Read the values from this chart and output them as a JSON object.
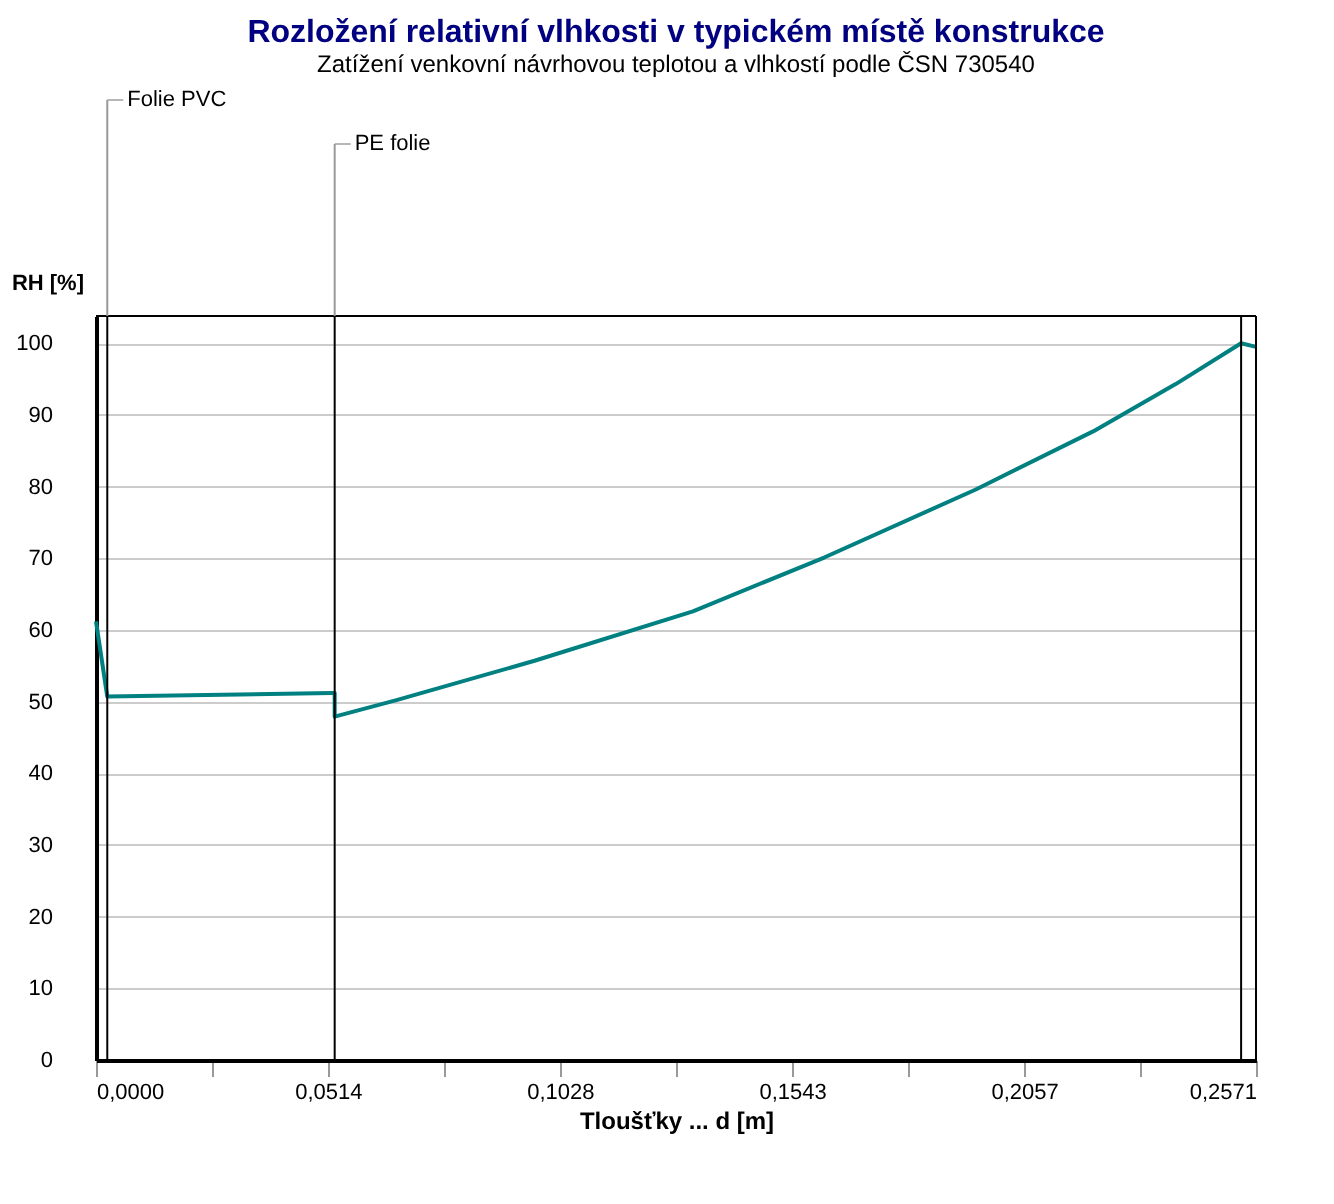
{
  "chart_data": {
    "type": "line",
    "title": "Rozložení relativní vlhkosti v typickém místě konstrukce",
    "subtitle": "Zatížení venkovní návrhovou teplotou a vlhkostí podle ČSN 730540",
    "xlabel": "Tloušťky ... d [m]",
    "ylabel": "RH [%]",
    "x": [
      0,
      0.0025,
      0.0523,
      0.0529,
      0.0529,
      0.0666,
      0.0972,
      0.1323,
      0.1614,
      0.195,
      0.221,
      0.2393,
      0.2538,
      0.2571
    ],
    "series": [
      {
        "color": "#008080",
        "values": [
          61.2,
          50.7,
          51.2,
          51.2,
          47.9,
          50.2,
          55.7,
          62.6,
          70.1,
          79.6,
          87.7,
          94.3,
          100,
          99.5
        ]
      }
    ],
    "xlim": [
      0,
      0.2571
    ],
    "ylim": [
      0,
      103.8
    ],
    "xticks": [
      {
        "value": 0,
        "label": "0,0000"
      },
      {
        "value": 0.0257,
        "label": null
      },
      {
        "value": 0.0514,
        "label": "0,0514"
      },
      {
        "value": 0.0771,
        "label": null
      },
      {
        "value": 0.1028,
        "label": "0,1028"
      },
      {
        "value": 0.1285,
        "label": null
      },
      {
        "value": 0.1543,
        "label": "0,1543"
      },
      {
        "value": 0.18,
        "label": null
      },
      {
        "value": 0.2057,
        "label": "0,2057"
      },
      {
        "value": 0.2314,
        "label": null
      },
      {
        "value": 0.2571,
        "label": "0,2571"
      }
    ],
    "yticks": [
      0,
      10,
      20,
      30,
      40,
      50,
      60,
      70,
      80,
      90,
      100
    ],
    "grid": "y",
    "marker": "none",
    "line_style": "solid",
    "ref_lines": [
      {
        "axis": "x",
        "value": 0.0025,
        "color": "#000000",
        "label": "Folie PVC"
      },
      {
        "axis": "x",
        "value": 0.0529,
        "color": "#000000",
        "label": "PE folie"
      },
      {
        "axis": "x",
        "value": 0.2538,
        "color": "#000000"
      }
    ]
  }
}
